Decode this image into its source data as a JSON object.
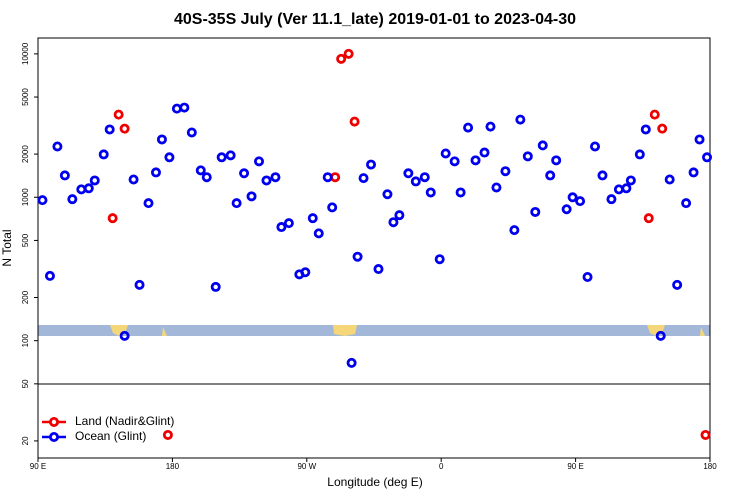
{
  "chart_data": {
    "type": "scatter",
    "title": "40S-35S July (Ver 11.1_late)   2019-01-01 to 2023-04-30",
    "x_label": "Longitude (deg E)",
    "y_label": "N Total",
    "log_y": true,
    "legend": "bottom-left",
    "xlim": [
      90,
      540
    ],
    "ylim": [
      15.2,
      12900
    ],
    "xticks": [
      {
        "value": 90,
        "label": "90 E"
      },
      180,
      {
        "value": 270,
        "label": "90 W"
      },
      {
        "value": 360,
        "label": "0"
      },
      {
        "value": 450,
        "label": "90 E"
      },
      {
        "value": 540,
        "label": "180"
      }
    ],
    "yticks": [
      20,
      50,
      100,
      200,
      500,
      1000,
      2000,
      5000,
      10000
    ],
    "series": [
      {
        "name": "Land (Nadir&Glint)",
        "color": "#ee0000",
        "x": [
          140,
          144,
          148,
          177,
          289,
          293,
          298,
          302,
          499,
          503,
          508,
          537
        ],
        "values": [
          715,
          3770,
          3010,
          22,
          1380,
          9230,
          10000,
          3370,
          715,
          3770,
          3010,
          22
        ]
      },
      {
        "name": "Ocean (Glint)",
        "color": "#0000ee",
        "x": [
          93,
          98,
          103,
          108,
          113,
          119,
          124,
          128,
          134,
          138,
          148,
          154,
          158,
          164,
          169,
          173,
          178,
          183,
          188,
          193,
          199,
          203,
          209,
          213,
          219,
          223,
          228,
          233,
          238,
          243,
          249,
          253,
          258,
          265,
          269,
          274,
          278,
          284,
          287,
          300,
          304,
          308,
          313,
          318,
          324,
          328,
          332,
          338,
          343,
          349,
          353,
          359,
          363,
          369,
          373,
          378,
          383,
          389,
          393,
          397,
          403,
          409,
          413,
          418,
          423,
          428,
          433,
          437,
          444,
          448,
          453,
          458,
          463,
          468,
          474,
          479,
          484,
          487,
          493,
          497,
          507,
          513,
          518,
          524,
          529,
          533,
          538
        ],
        "values": [
          955,
          283,
          2260,
          1420,
          970,
          1135,
          1155,
          1310,
          1990,
          2970,
          108,
          1330,
          245,
          910,
          1490,
          2530,
          1900,
          4150,
          4220,
          2830,
          1540,
          1380,
          237,
          1900,
          1960,
          910,
          1470,
          1015,
          1780,
          1310,
          1380,
          620,
          660,
          290,
          300,
          715,
          560,
          1380,
          850,
          70,
          385,
          1360,
          1690,
          316,
          1050,
          670,
          750,
          1470,
          1290,
          1380,
          1080,
          370,
          2020,
          1780,
          1080,
          3060,
          1810,
          2050,
          3110,
          1170,
          1520,
          590,
          3480,
          1930,
          790,
          2300,
          1420,
          1810,
          825,
          1000,
          940,
          278,
          2260,
          1420,
          970,
          1135,
          1155,
          1310,
          1990,
          2970,
          108,
          1330,
          245,
          910,
          1490,
          2530,
          1900
        ]
      }
    ]
  }
}
